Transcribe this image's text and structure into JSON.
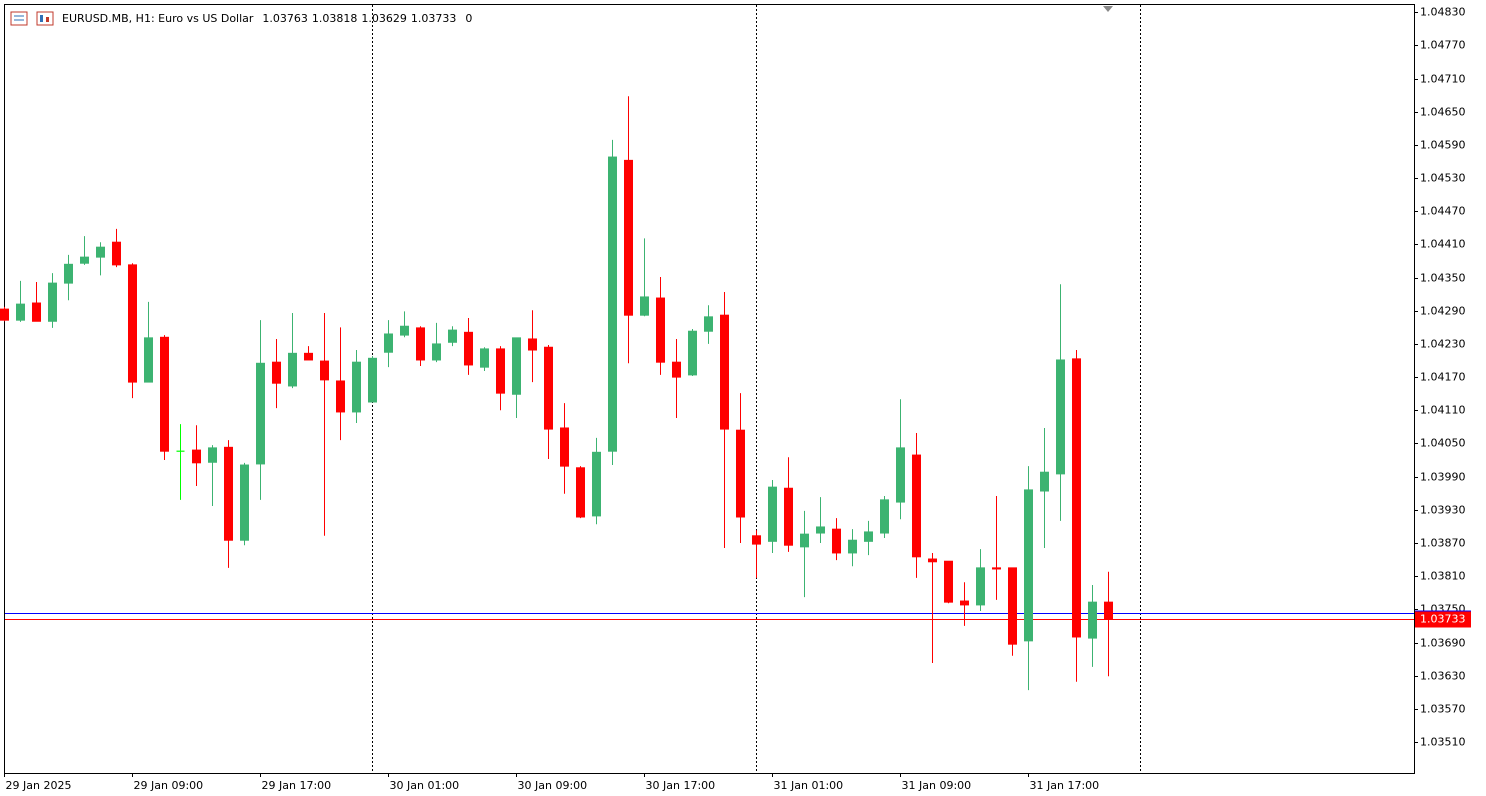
{
  "chart_data": {
    "type": "candlestick",
    "title": "EURUSD.MB, H1:  Euro vs US Dollar",
    "header_suffix": "0",
    "categories": [
      "29 Jan 2025",
      null,
      null,
      null,
      null,
      null,
      null,
      null,
      "29 Jan 09:00",
      null,
      null,
      null,
      null,
      null,
      null,
      null,
      "29 Jan 17:00",
      null,
      null,
      null,
      null,
      null,
      null,
      null,
      "30 Jan 01:00",
      null,
      null,
      null,
      null,
      null,
      null,
      null,
      "30 Jan 09:00",
      null,
      null,
      null,
      null,
      null,
      null,
      null,
      "30 Jan 17:00",
      null,
      null,
      null,
      null,
      null,
      null,
      null,
      "31 Jan 01:00",
      null,
      null,
      null,
      null,
      null,
      null,
      null,
      "31 Jan 09:00",
      null,
      null,
      null,
      null,
      null,
      null,
      null,
      "31 Jan 17:00",
      null,
      null,
      null,
      null,
      null
    ],
    "open": [
      1.04293,
      1.04273,
      1.04304,
      1.04271,
      1.0434,
      1.04376,
      1.04387,
      1.04414,
      1.04373,
      1.04161,
      1.04242,
      1.04036,
      1.04038,
      1.04016,
      1.04043,
      1.03875,
      1.04013,
      1.04197,
      1.04154,
      1.04213,
      1.04199,
      1.04163,
      1.04107,
      1.04125,
      1.04215,
      1.04246,
      1.04259,
      1.04201,
      1.04233,
      1.04251,
      1.04188,
      1.04221,
      1.04139,
      1.04239,
      1.04224,
      1.04078,
      1.04006,
      1.03919,
      1.04036,
      1.04562,
      1.04282,
      1.04313,
      1.04197,
      1.04174,
      1.04253,
      1.04282,
      1.04074,
      1.03883,
      1.03873,
      1.03969,
      1.03863,
      1.03888,
      1.03895,
      1.03852,
      1.03873,
      1.03888,
      1.03944,
      1.04029,
      1.03841,
      1.03837,
      1.03765,
      1.03758,
      1.03825,
      1.03825,
      1.03693,
      1.03964,
      1.03995,
      1.04203,
      1.03698,
      1.03763
    ],
    "high": [
      1.04297,
      1.04344,
      1.04342,
      1.04358,
      1.04391,
      1.04425,
      1.04414,
      1.04438,
      1.04376,
      1.04306,
      1.04246,
      1.04085,
      1.04083,
      1.04047,
      1.04056,
      1.04015,
      1.04273,
      1.04239,
      1.04286,
      1.04226,
      1.04286,
      1.0426,
      1.04219,
      1.04208,
      1.04273,
      1.04289,
      1.04262,
      1.04268,
      1.04262,
      1.04277,
      1.04224,
      1.04226,
      1.04241,
      1.04291,
      1.04228,
      1.04123,
      1.04009,
      1.0406,
      1.04599,
      1.04678,
      1.04421,
      1.04351,
      1.04239,
      1.04257,
      1.043,
      1.04324,
      1.04141,
      1.03893,
      1.03984,
      1.04025,
      1.03928,
      1.03953,
      1.03915,
      1.03895,
      1.0391,
      1.03955,
      1.0413,
      1.04069,
      1.03852,
      1.03837,
      1.03799,
      1.03859,
      1.03955,
      1.03825,
      1.04009,
      1.04078,
      1.04338,
      1.04219,
      1.03794,
      1.03818
    ],
    "low": [
      1.04271,
      1.0427,
      1.04271,
      1.04259,
      1.04309,
      1.04373,
      1.04354,
      1.04369,
      1.04132,
      1.04161,
      1.0402,
      1.03948,
      1.03973,
      1.03937,
      1.03825,
      1.03866,
      1.03948,
      1.04114,
      1.0415,
      1.04201,
      1.03883,
      1.04056,
      1.04087,
      1.04125,
      1.04188,
      1.04242,
      1.0419,
      1.04197,
      1.04226,
      1.04174,
      1.04181,
      1.0411,
      1.04096,
      1.04161,
      1.04022,
      1.03959,
      1.03915,
      1.03904,
      1.04011,
      1.04195,
      1.0428,
      1.04174,
      1.04096,
      1.04172,
      1.0423,
      1.03861,
      1.0387,
      1.03807,
      1.03852,
      1.03854,
      1.03772,
      1.0387,
      1.03839,
      1.03828,
      1.03848,
      1.03879,
      1.03913,
      1.03807,
      1.03653,
      1.03761,
      1.0372,
      1.03747,
      1.03767,
      1.03666,
      1.03604,
      1.03861,
      1.0391,
      1.03619,
      1.03646,
      1.03629
    ],
    "close": [
      1.04273,
      1.04302,
      1.04271,
      1.0434,
      1.04374,
      1.04387,
      1.04405,
      1.04373,
      1.04161,
      1.04241,
      1.04036,
      1.04036,
      1.04015,
      1.04042,
      1.03875,
      1.04011,
      1.04195,
      1.04159,
      1.04213,
      1.04201,
      1.04165,
      1.04107,
      1.04197,
      1.04204,
      1.04248,
      1.04262,
      1.04201,
      1.0423,
      1.04255,
      1.04192,
      1.04221,
      1.04141,
      1.04241,
      1.04219,
      1.04076,
      1.04009,
      1.03917,
      1.04034,
      1.04568,
      1.04282,
      1.04315,
      1.04197,
      1.0417,
      1.04253,
      1.04279,
      1.04076,
      1.03917,
      1.03868,
      1.03971,
      1.03866,
      1.03886,
      1.03899,
      1.03852,
      1.03875,
      1.0389,
      1.03948,
      1.04042,
      1.03845,
      1.03836,
      1.03763,
      1.03758,
      1.03825,
      1.03823,
      1.03687,
      1.03966,
      1.03998,
      1.04201,
      1.037,
      1.03763,
      1.03733
    ],
    "up_color": "#3cb371",
    "down_color": "#ff0000",
    "doji_color": "#00ff00",
    "ask": 1.03743,
    "ask_color": "#0000ff",
    "bid_color": "#ff0000",
    "ylim": [
      1.03454,
      1.04843
    ],
    "yticks": [
      {
        "value": 1.0483,
        "label": "1.04830"
      },
      {
        "value": 1.0477,
        "label": "1.04770"
      },
      {
        "value": 1.0471,
        "label": "1.04710"
      },
      {
        "value": 1.0465,
        "label": "1.04650"
      },
      {
        "value": 1.0459,
        "label": "1.04590"
      },
      {
        "value": 1.0453,
        "label": "1.04530"
      },
      {
        "value": 1.0447,
        "label": "1.04470"
      },
      {
        "value": 1.0441,
        "label": "1.04410"
      },
      {
        "value": 1.0435,
        "label": "1.04350"
      },
      {
        "value": 1.0429,
        "label": "1.04290"
      },
      {
        "value": 1.0423,
        "label": "1.04230"
      },
      {
        "value": 1.0417,
        "label": "1.04170"
      },
      {
        "value": 1.0411,
        "label": "1.04110"
      },
      {
        "value": 1.0405,
        "label": "1.04050"
      },
      {
        "value": 1.0399,
        "label": "1.03990"
      },
      {
        "value": 1.0393,
        "label": "1.03930"
      },
      {
        "value": 1.0387,
        "label": "1.03870"
      },
      {
        "value": 1.0381,
        "label": "1.03810"
      },
      {
        "value": 1.0375,
        "label": "1.03750"
      },
      {
        "value": 1.0369,
        "label": "1.03690"
      },
      {
        "value": 1.0363,
        "label": "1.03630"
      },
      {
        "value": 1.0357,
        "label": "1.03570"
      },
      {
        "value": 1.0351,
        "label": "1.03510"
      }
    ],
    "grid": false
  }
}
